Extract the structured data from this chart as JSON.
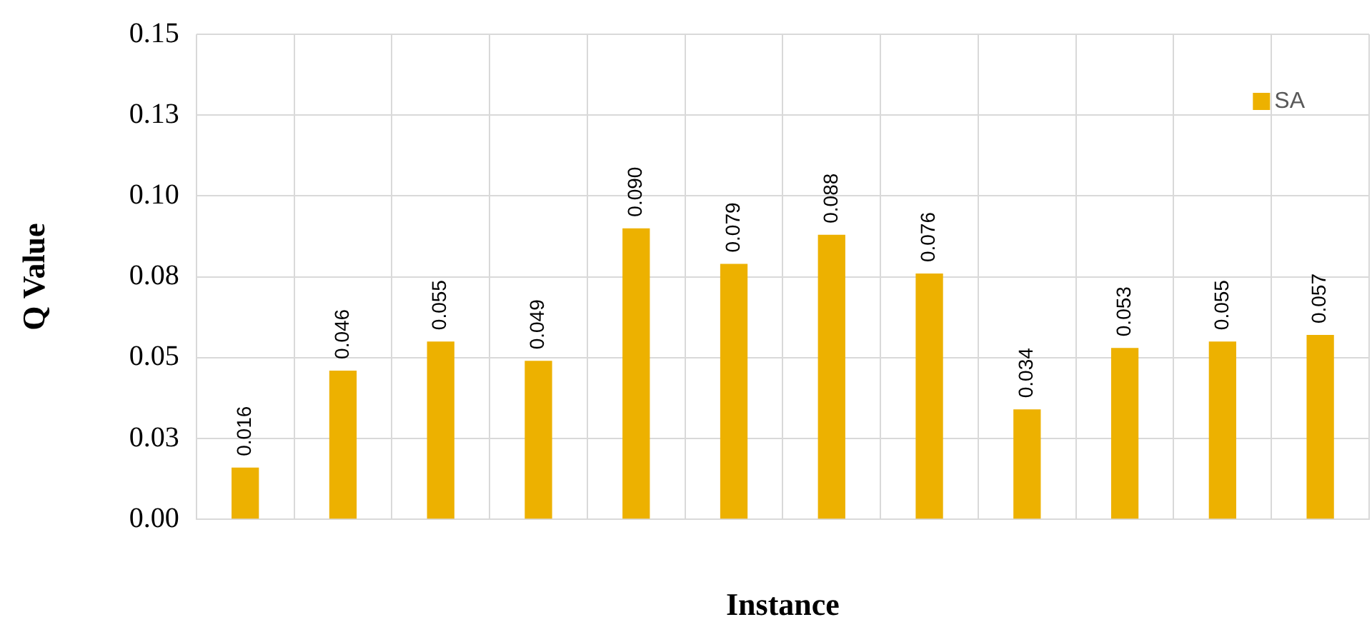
{
  "chart_data": {
    "type": "bar",
    "xlabel": "Instance",
    "ylabel": "Q Value",
    "categories": [
      null,
      null,
      null,
      null,
      null,
      null,
      null,
      null,
      null,
      null,
      null,
      null
    ],
    "series": [
      {
        "name": "SA",
        "color": "#edb100",
        "values": [
          0.016,
          0.046,
          0.055,
          0.049,
          0.09,
          0.079,
          0.088,
          0.076,
          0.034,
          0.053,
          0.055,
          0.057
        ],
        "value_labels": [
          "0.016",
          "0.046",
          "0.055",
          "0.049",
          "0.090",
          "0.079",
          "0.088",
          "0.076",
          "0.034",
          "0.053",
          "0.055",
          "0.057"
        ]
      }
    ],
    "ylim": [
      0,
      0.15
    ],
    "yticks": [
      {
        "value": 0,
        "label": "0.00"
      },
      {
        "value": 0.025,
        "label": "0.03"
      },
      {
        "value": 0.05,
        "label": "0.05"
      },
      {
        "value": 0.075,
        "label": "0.08"
      },
      {
        "value": 0.1,
        "label": "0.10"
      },
      {
        "value": 0.125,
        "label": "0.13"
      },
      {
        "value": 0.15,
        "label": "0.15"
      }
    ],
    "grid": true,
    "legend": "top right",
    "tick_labels": "y"
  }
}
